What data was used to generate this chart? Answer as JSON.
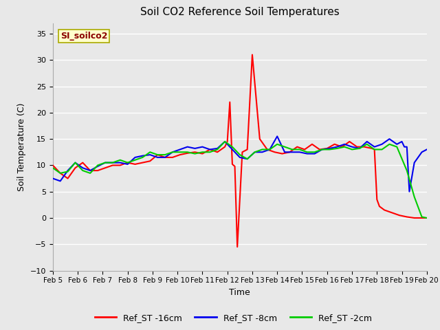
{
  "title": "Soil CO2 Reference Soil Temperatures",
  "xlabel": "Time",
  "ylabel": "Soil Temperature (C)",
  "ylim": [
    -10,
    37
  ],
  "yticks": [
    -10,
    -5,
    0,
    5,
    10,
    15,
    20,
    25,
    30,
    35
  ],
  "x_labels": [
    "Feb 5",
    "Feb 6",
    "Feb 7",
    "Feb 8",
    "Feb 9",
    "Feb 10",
    "Feb 11",
    "Feb 12",
    "Feb 13",
    "Feb 14",
    "Feb 15",
    "Feb 16",
    "Feb 17",
    "Feb 18",
    "Feb 19",
    "Feb 20"
  ],
  "plot_bg_color": "#e8e8e8",
  "grid_color": "#ffffff",
  "watermark_text": "SI_soilco2",
  "watermark_color": "#8b0000",
  "watermark_bg": "#ffffcc",
  "legend": [
    "Ref_ST -16cm",
    "Ref_ST -8cm",
    "Ref_ST -2cm"
  ],
  "colors": {
    "red": "#ff0000",
    "blue": "#0000ee",
    "green": "#00cc00"
  },
  "ref_st_16cm_x": [
    0,
    0.3,
    0.6,
    0.9,
    1.2,
    1.5,
    1.8,
    2.1,
    2.4,
    2.7,
    3.0,
    3.3,
    3.6,
    3.9,
    4.2,
    4.5,
    4.8,
    5.1,
    5.4,
    5.7,
    6.0,
    6.3,
    6.6,
    6.9,
    7.0,
    7.1,
    7.2,
    7.3,
    7.4,
    7.6,
    7.8,
    8.0,
    8.3,
    8.6,
    8.9,
    9.2,
    9.5,
    9.8,
    10.1,
    10.4,
    10.7,
    11.0,
    11.3,
    11.6,
    11.9,
    12.2,
    12.5,
    12.8,
    12.9,
    13.0,
    13.1,
    13.3,
    13.6,
    13.9,
    14.2,
    14.5,
    14.8,
    15.0
  ],
  "ref_st_16cm_y": [
    10.0,
    8.5,
    7.5,
    9.5,
    10.5,
    9.0,
    9.0,
    9.5,
    10.0,
    10.0,
    10.5,
    10.2,
    10.5,
    10.8,
    12.0,
    11.5,
    11.5,
    12.0,
    12.3,
    12.5,
    12.2,
    13.0,
    12.5,
    13.5,
    14.5,
    22.0,
    10.2,
    9.8,
    -5.5,
    12.5,
    13.0,
    31.0,
    15.0,
    13.0,
    12.5,
    12.2,
    12.5,
    13.5,
    13.0,
    14.0,
    13.0,
    13.2,
    14.0,
    13.5,
    14.5,
    13.5,
    13.5,
    13.2,
    13.0,
    3.5,
    2.2,
    1.5,
    1.0,
    0.5,
    0.2,
    0.0,
    0.0,
    0.0
  ],
  "ref_st_8cm_x": [
    0,
    0.3,
    0.6,
    0.9,
    1.2,
    1.5,
    1.8,
    2.1,
    2.4,
    2.7,
    3.0,
    3.3,
    3.6,
    3.9,
    4.2,
    4.5,
    4.8,
    5.1,
    5.4,
    5.7,
    6.0,
    6.3,
    6.6,
    6.9,
    7.2,
    7.5,
    7.8,
    8.1,
    8.4,
    8.7,
    9.0,
    9.3,
    9.6,
    9.9,
    10.2,
    10.5,
    10.8,
    11.1,
    11.4,
    11.7,
    12.0,
    12.3,
    12.6,
    12.9,
    13.2,
    13.5,
    13.8,
    14.0,
    14.1,
    14.2,
    14.3,
    14.5,
    14.8,
    15.0
  ],
  "ref_st_8cm_y": [
    7.5,
    7.0,
    9.0,
    10.5,
    9.5,
    9.0,
    9.8,
    10.5,
    10.5,
    10.5,
    10.2,
    11.5,
    11.8,
    12.0,
    11.5,
    11.5,
    12.5,
    13.0,
    13.5,
    13.2,
    13.5,
    13.0,
    13.2,
    14.5,
    13.0,
    11.5,
    11.2,
    12.5,
    12.5,
    13.0,
    15.5,
    12.5,
    12.5,
    12.5,
    12.2,
    12.2,
    13.0,
    13.2,
    13.5,
    14.0,
    13.5,
    13.2,
    14.5,
    13.5,
    14.0,
    15.0,
    14.0,
    14.5,
    13.5,
    13.5,
    5.0,
    10.5,
    12.5,
    13.0
  ],
  "ref_st_2cm_x": [
    0,
    0.3,
    0.6,
    0.9,
    1.2,
    1.5,
    1.8,
    2.1,
    2.4,
    2.7,
    3.0,
    3.3,
    3.6,
    3.9,
    4.2,
    4.5,
    4.8,
    5.1,
    5.4,
    5.7,
    6.0,
    6.3,
    6.6,
    6.9,
    7.2,
    7.5,
    7.8,
    8.1,
    8.4,
    8.7,
    9.0,
    9.3,
    9.6,
    9.9,
    10.2,
    10.5,
    10.8,
    11.1,
    11.4,
    11.7,
    12.0,
    12.3,
    12.6,
    12.9,
    13.2,
    13.5,
    13.8,
    14.2,
    14.5,
    14.8,
    15.0
  ],
  "ref_st_2cm_y": [
    9.5,
    8.5,
    8.8,
    10.5,
    9.0,
    8.5,
    10.0,
    10.5,
    10.5,
    11.0,
    10.5,
    11.0,
    11.5,
    12.5,
    12.0,
    12.0,
    12.5,
    12.5,
    12.5,
    12.2,
    12.5,
    12.5,
    13.0,
    14.5,
    13.5,
    12.0,
    11.2,
    12.5,
    13.0,
    13.0,
    14.0,
    13.5,
    13.0,
    13.0,
    12.5,
    12.5,
    13.0,
    13.0,
    13.2,
    13.5,
    13.0,
    13.2,
    14.0,
    13.0,
    13.0,
    14.0,
    13.5,
    9.0,
    4.0,
    0.2,
    0.0
  ]
}
